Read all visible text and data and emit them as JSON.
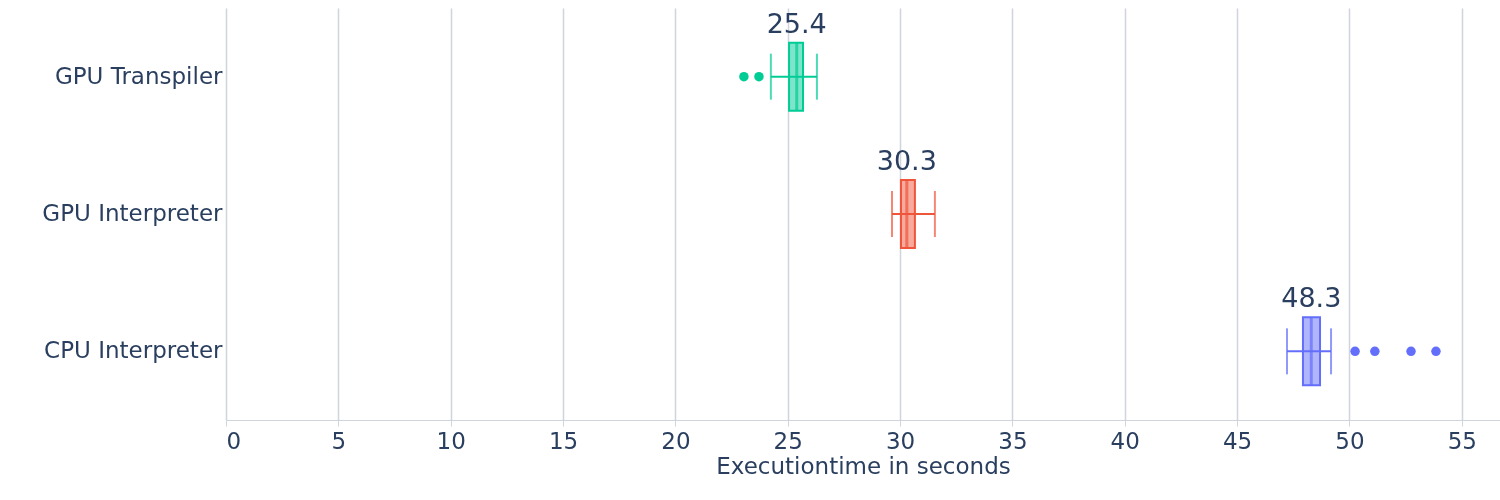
{
  "chart_data": {
    "type": "box",
    "orientation": "horizontal",
    "xlabel": "Executiontime in seconds",
    "categories": [
      "GPU Transpiler",
      "GPU Interpreter",
      "CPU Interpreter"
    ],
    "colors": [
      "#00cc96",
      "#ef553b",
      "#636efa"
    ],
    "boxes": [
      {
        "low": 24.25,
        "q1": 25.06,
        "median": 25.4,
        "q3": 25.68,
        "high": 26.3,
        "outliers": [
          23.05,
          23.72
        ]
      },
      {
        "low": 29.64,
        "q1": 30.04,
        "median": 30.3,
        "q3": 30.66,
        "high": 31.55
      },
      {
        "low": 47.22,
        "q1": 47.93,
        "median": 48.3,
        "q3": 48.69,
        "high": 49.18,
        "outliers": [
          50.25,
          51.13,
          52.74,
          53.85
        ]
      }
    ],
    "annotations": [
      {
        "text": "25.4",
        "x": 25.4,
        "y": "GPU Transpiler"
      },
      {
        "text": "30.3",
        "x": 30.3,
        "y": "GPU Interpreter"
      },
      {
        "text": "48.3",
        "x": 48.3,
        "y": "CPU Interpreter"
      }
    ],
    "xlim": [
      0,
      56.7
    ],
    "xticks": [
      0,
      5,
      10,
      15,
      20,
      25,
      30,
      35,
      40,
      45,
      50,
      55
    ],
    "grid": "x"
  }
}
